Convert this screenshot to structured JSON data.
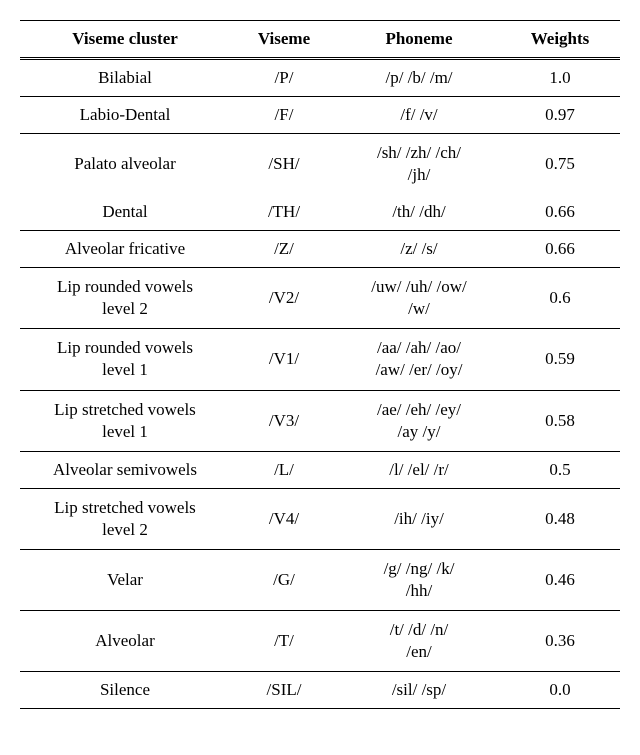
{
  "table": {
    "type": "table",
    "background_color": "#ffffff",
    "text_color": "#000000",
    "border_color": "#000000",
    "font_family": "Times New Roman",
    "header_fontsize": 17,
    "cell_fontsize": 17,
    "columns": [
      {
        "key": "cluster",
        "label": "Viseme cluster",
        "width": "35%",
        "align": "center"
      },
      {
        "key": "viseme",
        "label": "Viseme",
        "width": "18%",
        "align": "center"
      },
      {
        "key": "phoneme",
        "label": "Phoneme",
        "width": "27%",
        "align": "center"
      },
      {
        "key": "weights",
        "label": "Weights",
        "width": "20%",
        "align": "center"
      }
    ],
    "rows": [
      {
        "cluster": "Bilabial",
        "viseme": "/P/",
        "phoneme": "/p/ /b/ /m/",
        "weights": "1.0",
        "group_border": true
      },
      {
        "cluster": "Labio-Dental",
        "viseme": "/F/",
        "phoneme": "/f/ /v/",
        "weights": "0.97",
        "group_border": true
      },
      {
        "cluster": "Palato alveolar",
        "viseme": "/SH/",
        "phoneme": "/sh/ /zh/ /ch/\n/jh/",
        "weights": "0.75",
        "group_border": false
      },
      {
        "cluster": "Dental",
        "viseme": "/TH/",
        "phoneme": "/th/ /dh/",
        "weights": "0.66",
        "group_border": true
      },
      {
        "cluster": "Alveolar fricative",
        "viseme": "/Z/",
        "phoneme": "/z/ /s/",
        "weights": "0.66",
        "group_border": true
      },
      {
        "cluster": "Lip rounded vowels\nlevel 2",
        "viseme": "/V2/",
        "phoneme": "/uw/ /uh/ /ow/\n/w/",
        "weights": "0.6",
        "group_border": true
      },
      {
        "cluster": "Lip rounded vowels\nlevel 1",
        "viseme": "/V1/",
        "phoneme": "/aa/ /ah/ /ao/\n/aw/ /er/ /oy/",
        "weights": "0.59",
        "group_border": true
      },
      {
        "cluster": "Lip stretched vowels\nlevel 1",
        "viseme": "/V3/",
        "phoneme": "/ae/ /eh/ /ey/\n/ay /y/",
        "weights": "0.58",
        "group_border": true
      },
      {
        "cluster": "Alveolar semivowels",
        "viseme": "/L/",
        "phoneme": "/l/ /el/ /r/",
        "weights": "0.5",
        "group_border": true
      },
      {
        "cluster": "Lip stretched vowels\nlevel 2",
        "viseme": "/V4/",
        "phoneme": "/ih/ /iy/",
        "weights": "0.48",
        "group_border": true
      },
      {
        "cluster": "Velar",
        "viseme": "/G/",
        "phoneme": "/g/ /ng/ /k/\n/hh/",
        "weights": "0.46",
        "group_border": true
      },
      {
        "cluster": "Alveolar",
        "viseme": "/T/",
        "phoneme": "/t/ /d/ /n/\n/en/",
        "weights": "0.36",
        "group_border": true
      },
      {
        "cluster": "Silence",
        "viseme": "/SIL/",
        "phoneme": "/sil/ /sp/",
        "weights": "0.0",
        "group_border": true
      }
    ]
  }
}
